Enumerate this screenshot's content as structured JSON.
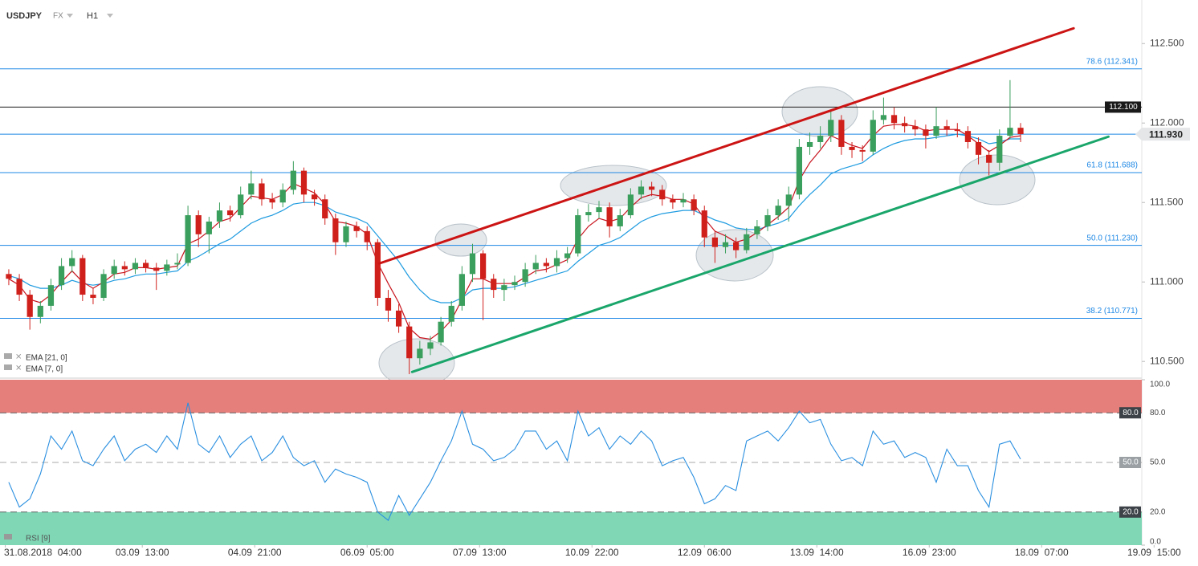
{
  "header": {
    "symbol": "USDJPY",
    "market": "FX",
    "timeframe": "H1"
  },
  "chart_data": [
    {
      "type": "candlestick",
      "up_color": "#3a9e5c",
      "down_color": "#d0201c",
      "x": [
        -6,
        -3,
        0,
        3,
        6,
        9,
        12,
        15,
        18,
        21,
        24,
        27,
        30,
        33,
        36,
        39,
        42,
        45,
        48,
        51,
        54,
        57,
        60,
        63,
        66,
        69,
        72,
        75,
        78,
        81,
        84,
        87,
        90,
        93,
        96,
        99,
        102,
        105,
        108,
        111,
        114,
        117,
        120,
        123,
        126,
        129,
        132,
        135,
        138,
        141,
        144,
        147,
        150,
        153,
        156,
        159,
        162,
        165,
        168,
        171,
        174,
        177,
        180,
        183,
        186,
        189,
        192,
        195,
        198,
        201,
        204,
        207,
        210,
        213,
        216,
        219,
        222,
        225,
        228,
        231,
        234,
        237,
        240,
        243,
        246,
        249,
        252,
        255,
        258,
        261,
        264,
        267,
        270,
        273,
        276,
        279,
        282
      ],
      "open": [
        111.05,
        111.02,
        110.92,
        110.78,
        110.85,
        110.98,
        111.1,
        111.15,
        110.92,
        110.9,
        111.05,
        111.1,
        111.08,
        111.12,
        111.09,
        111.07,
        111.11,
        111.12,
        111.42,
        111.3,
        111.38,
        111.45,
        111.42,
        111.55,
        111.62,
        111.52,
        111.5,
        111.58,
        111.7,
        111.55,
        111.52,
        111.4,
        111.25,
        111.35,
        111.32,
        111.25,
        110.9,
        110.82,
        110.72,
        110.52,
        110.58,
        110.62,
        110.75,
        110.85,
        111.05,
        111.18,
        111.02,
        110.95,
        110.98,
        111.0,
        111.08,
        111.12,
        111.1,
        111.15,
        111.18,
        111.42,
        111.44,
        111.47,
        111.35,
        111.42,
        111.55,
        111.6,
        111.58,
        111.52,
        111.5,
        111.52,
        111.45,
        111.28,
        111.22,
        111.25,
        111.2,
        111.3,
        111.35,
        111.42,
        111.48,
        111.55,
        111.85,
        111.88,
        111.92,
        112.02,
        111.85,
        111.83,
        111.82,
        112.02,
        112.05,
        112.0,
        111.98,
        111.96,
        111.92,
        111.98,
        111.96,
        111.95,
        111.88,
        111.8,
        111.75,
        111.92,
        111.97
      ],
      "high": [
        111.08,
        111.05,
        110.95,
        110.88,
        111.02,
        111.15,
        111.2,
        111.17,
        110.96,
        111.08,
        111.14,
        111.13,
        111.15,
        111.14,
        111.12,
        111.14,
        111.18,
        111.48,
        111.45,
        111.41,
        111.5,
        111.48,
        111.6,
        111.7,
        111.65,
        111.56,
        111.62,
        111.76,
        111.72,
        111.58,
        111.55,
        111.43,
        111.38,
        111.38,
        111.35,
        111.27,
        110.95,
        110.86,
        110.75,
        110.63,
        110.66,
        110.78,
        110.88,
        111.1,
        111.24,
        111.2,
        111.05,
        111.02,
        111.04,
        111.12,
        111.17,
        111.15,
        111.2,
        111.22,
        111.46,
        111.49,
        111.51,
        111.5,
        111.46,
        111.59,
        111.64,
        111.63,
        111.61,
        111.55,
        111.56,
        111.55,
        111.48,
        111.32,
        111.3,
        111.28,
        111.34,
        111.39,
        111.46,
        111.52,
        111.6,
        111.9,
        111.94,
        111.98,
        112.08,
        112.05,
        111.88,
        111.86,
        112.08,
        112.16,
        112.1,
        112.04,
        112.02,
        111.99,
        112.1,
        112.02,
        112.0,
        111.98,
        111.91,
        111.83,
        111.96,
        112.27,
        112.0
      ],
      "low": [
        110.98,
        110.88,
        110.7,
        110.74,
        110.82,
        110.95,
        111.06,
        110.88,
        110.86,
        110.88,
        111.02,
        111.04,
        111.05,
        111.06,
        110.95,
        111.04,
        111.08,
        111.1,
        111.22,
        111.18,
        111.34,
        111.38,
        111.4,
        111.52,
        111.48,
        111.46,
        111.47,
        111.55,
        111.5,
        111.48,
        111.36,
        111.17,
        111.22,
        111.28,
        111.2,
        110.85,
        110.75,
        110.68,
        110.42,
        110.48,
        110.54,
        110.6,
        110.72,
        110.82,
        111.0,
        110.76,
        110.9,
        110.88,
        110.95,
        110.97,
        111.05,
        111.06,
        111.06,
        111.12,
        111.16,
        111.38,
        111.4,
        111.28,
        111.32,
        111.4,
        111.52,
        111.54,
        111.48,
        111.46,
        111.47,
        111.42,
        111.22,
        111.12,
        111.18,
        111.15,
        111.18,
        111.27,
        111.32,
        111.39,
        111.38,
        111.52,
        111.8,
        111.84,
        111.88,
        111.8,
        111.78,
        111.76,
        111.8,
        111.99,
        111.96,
        111.94,
        111.92,
        111.84,
        111.9,
        111.92,
        111.91,
        111.84,
        111.74,
        111.67,
        111.7,
        111.9,
        111.88
      ],
      "close": [
        111.02,
        110.92,
        110.78,
        110.85,
        110.98,
        111.1,
        111.15,
        110.92,
        110.9,
        111.05,
        111.1,
        111.08,
        111.12,
        111.09,
        111.07,
        111.11,
        111.12,
        111.42,
        111.3,
        111.38,
        111.45,
        111.42,
        111.55,
        111.62,
        111.52,
        111.5,
        111.58,
        111.7,
        111.55,
        111.52,
        111.4,
        111.25,
        111.35,
        111.32,
        111.25,
        110.9,
        110.82,
        110.72,
        110.52,
        110.58,
        110.62,
        110.75,
        110.85,
        111.05,
        111.18,
        111.02,
        110.95,
        110.98,
        111.0,
        111.08,
        111.12,
        111.1,
        111.15,
        111.18,
        111.42,
        111.44,
        111.47,
        111.35,
        111.42,
        111.55,
        111.6,
        111.58,
        111.52,
        111.5,
        111.52,
        111.45,
        111.28,
        111.22,
        111.25,
        111.2,
        111.3,
        111.35,
        111.42,
        111.48,
        111.55,
        111.85,
        111.88,
        111.92,
        112.02,
        111.85,
        111.83,
        111.82,
        112.02,
        112.05,
        112.0,
        111.98,
        111.96,
        111.92,
        111.98,
        111.96,
        111.95,
        111.88,
        111.8,
        111.75,
        111.92,
        111.97,
        111.93
      ],
      "series": [
        {
          "name": "EMA [21, 0]",
          "color": "#1e9be0",
          "values": [
            111.04,
            111.02,
            110.98,
            110.96,
            110.96,
            110.98,
            111.01,
            110.99,
            110.98,
            110.99,
            111.01,
            111.02,
            111.04,
            111.05,
            111.05,
            111.06,
            111.07,
            111.13,
            111.16,
            111.2,
            111.24,
            111.27,
            111.32,
            111.37,
            111.4,
            111.42,
            111.45,
            111.49,
            111.5,
            111.5,
            111.48,
            111.44,
            111.42,
            111.4,
            111.37,
            111.29,
            111.21,
            111.13,
            111.03,
            110.95,
            110.89,
            110.87,
            110.87,
            110.9,
            110.95,
            110.96,
            110.96,
            110.96,
            110.97,
            110.99,
            111.01,
            111.03,
            111.05,
            111.07,
            111.13,
            111.18,
            111.23,
            111.25,
            111.28,
            111.33,
            111.38,
            111.41,
            111.43,
            111.44,
            111.45,
            111.45,
            111.42,
            111.39,
            111.37,
            111.34,
            111.33,
            111.33,
            111.35,
            111.37,
            111.4,
            111.48,
            111.55,
            111.61,
            111.68,
            111.71,
            111.73,
            111.75,
            111.8,
            111.84,
            111.87,
            111.89,
            111.9,
            111.9,
            111.91,
            111.92,
            111.93,
            111.92,
            111.9,
            111.87,
            111.88,
            111.9,
            111.9
          ]
        },
        {
          "name": "EMA [7, 0]",
          "color": "#c8141e",
          "values": [
            111.02,
            110.98,
            110.89,
            110.87,
            110.92,
            111.0,
            111.07,
            111.0,
            110.96,
            111.0,
            111.05,
            111.06,
            111.09,
            111.09,
            111.08,
            111.09,
            111.1,
            111.24,
            111.27,
            111.32,
            111.38,
            111.4,
            111.47,
            111.54,
            111.53,
            111.52,
            111.55,
            111.62,
            111.59,
            111.56,
            111.49,
            111.38,
            111.37,
            111.35,
            111.3,
            111.12,
            110.99,
            110.87,
            110.71,
            110.65,
            110.64,
            110.69,
            110.76,
            110.89,
            111.02,
            111.02,
            110.99,
            110.99,
            110.99,
            111.03,
            111.07,
            111.08,
            111.11,
            111.14,
            111.27,
            111.35,
            111.4,
            111.38,
            111.4,
            111.47,
            111.53,
            111.55,
            111.54,
            111.52,
            111.52,
            111.49,
            111.4,
            111.32,
            111.29,
            111.25,
            111.27,
            111.31,
            111.36,
            111.41,
            111.47,
            111.64,
            111.75,
            111.83,
            111.92,
            111.89,
            111.86,
            111.84,
            111.92,
            111.98,
            111.99,
            111.99,
            111.98,
            111.95,
            111.96,
            111.96,
            111.96,
            111.92,
            111.87,
            111.82,
            111.86,
            111.91,
            111.92
          ]
        }
      ],
      "levels_color": "#1e88e5",
      "levels": [
        {
          "value": 112.341,
          "label": "78.6 (112.341)"
        },
        {
          "value": 111.688,
          "label": "61.8 (111.688)"
        },
        {
          "value": 111.23,
          "label": "50.0 (111.230)"
        },
        {
          "value": 110.771,
          "label": "38.2 (110.771)"
        }
      ],
      "price_lines": [
        {
          "value": 112.1,
          "label": "112.100",
          "color": "#1a1a1a"
        },
        {
          "value": 111.93,
          "label": "111.930",
          "color": "#1e88e5"
        }
      ],
      "trendlines": [
        {
          "color": "#cc1414",
          "x": [
            99.4,
            297.1
          ],
          "y": [
            111.116,
            112.596
          ]
        },
        {
          "color": "#1aa66b",
          "x": [
            108.8,
            307
          ],
          "y": [
            110.434,
            111.914
          ]
        }
      ],
      "xlim": [
        -8.5,
        316.5
      ],
      "ylim": [
        110.4,
        112.774
      ],
      "yticks": [
        {
          "value": 110.5,
          "label": "110.500"
        },
        {
          "value": 111,
          "label": "111.000"
        },
        {
          "value": 111.5,
          "label": "111.500"
        },
        {
          "value": 112,
          "label": "112.000"
        },
        {
          "value": 112.5,
          "label": "112.500"
        }
      ],
      "xticks": [
        {
          "value": -7,
          "label": "31.08.2018  04:00"
        },
        {
          "value": 32,
          "label": "03.09  13:00"
        },
        {
          "value": 64,
          "label": "04.09  21:00"
        },
        {
          "value": 96,
          "label": "06.09  05:00"
        },
        {
          "value": 128,
          "label": "07.09  13:00"
        },
        {
          "value": 160,
          "label": "10.09  22:00"
        },
        {
          "value": 192,
          "label": "12.09  06:00"
        },
        {
          "value": 224,
          "label": "13.09  14:00"
        },
        {
          "value": 256,
          "label": "16.09  23:00"
        },
        {
          "value": 288,
          "label": "18.09  07:00"
        },
        {
          "value": 320,
          "label": "19.09  15:00"
        }
      ]
    },
    {
      "type": "line",
      "x": [
        -6,
        -3,
        0,
        3,
        6,
        9,
        12,
        15,
        18,
        21,
        24,
        27,
        30,
        33,
        36,
        39,
        42,
        45,
        48,
        51,
        54,
        57,
        60,
        63,
        66,
        69,
        72,
        75,
        78,
        81,
        84,
        87,
        90,
        93,
        96,
        99,
        102,
        105,
        108,
        111,
        114,
        117,
        120,
        123,
        126,
        129,
        132,
        135,
        138,
        141,
        144,
        147,
        150,
        153,
        156,
        159,
        162,
        165,
        168,
        171,
        174,
        177,
        180,
        183,
        186,
        189,
        192,
        195,
        198,
        201,
        204,
        207,
        210,
        213,
        216,
        219,
        222,
        225,
        228,
        231,
        234,
        237,
        240,
        243,
        246,
        249,
        252,
        255,
        258,
        261,
        264,
        267,
        270,
        273,
        276,
        279,
        282
      ],
      "series": [
        {
          "name": "RSI [9]",
          "color": "#2a8fe0",
          "values": [
            38,
            23,
            28,
            43,
            66,
            58,
            69,
            51,
            48,
            58,
            66,
            51,
            58,
            61,
            56,
            66,
            58,
            86,
            61,
            56,
            66,
            53,
            61,
            66,
            51,
            56,
            66,
            53,
            48,
            51,
            38,
            46,
            43,
            41,
            38,
            20,
            15,
            30,
            18,
            28,
            38,
            51,
            63,
            81,
            61,
            58,
            51,
            53,
            58,
            69,
            69,
            58,
            63,
            51,
            81,
            66,
            71,
            58,
            66,
            61,
            69,
            63,
            48,
            51,
            53,
            41,
            25,
            28,
            36,
            33,
            63,
            66,
            69,
            63,
            71,
            81,
            74,
            76,
            61,
            51,
            53,
            48,
            69,
            61,
            63,
            53,
            56,
            53,
            38,
            58,
            48,
            48,
            33,
            23,
            61,
            63,
            52
          ]
        }
      ],
      "zones": [
        {
          "from": 80,
          "to": 100,
          "color": "#e57f7c"
        },
        {
          "from": 0,
          "to": 20,
          "color": "#7fd7b6"
        }
      ],
      "xlim": [
        -8.5,
        316.5
      ],
      "ylim": [
        0,
        100
      ],
      "yticks": [
        {
          "value": 0,
          "label": "0.0"
        },
        {
          "value": 20,
          "label": "20.0"
        },
        {
          "value": 50,
          "label": "50.0"
        },
        {
          "value": 80,
          "label": "80.0"
        },
        {
          "value": 100,
          "label": "100.0"
        }
      ]
    }
  ]
}
